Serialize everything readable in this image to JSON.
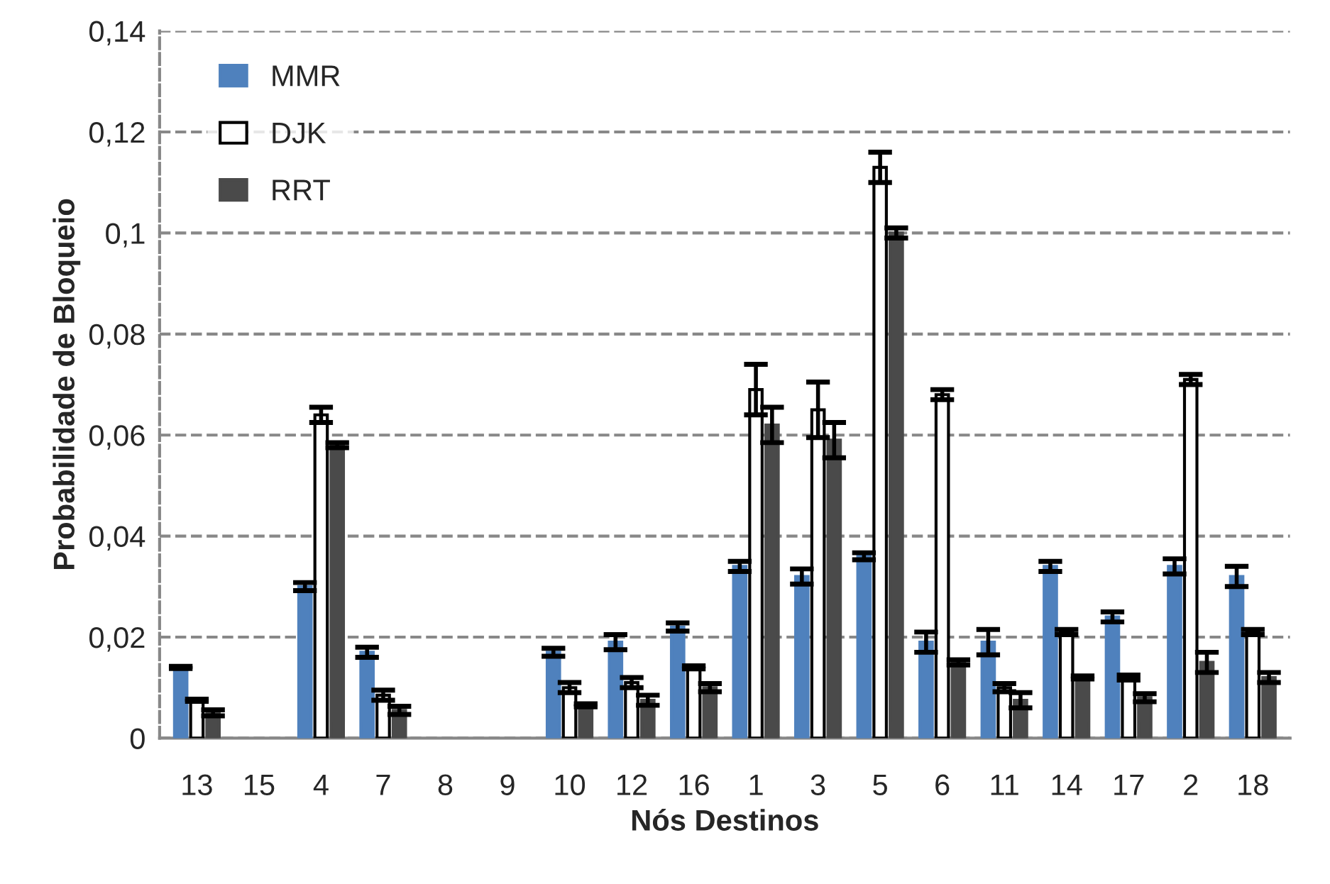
{
  "chart_data": {
    "type": "bar",
    "xlabel": "Nós Destinos",
    "ylabel": "Probabilidade de Bloqueio",
    "categories": [
      "13",
      "15",
      "4",
      "7",
      "8",
      "9",
      "10",
      "12",
      "16",
      "1",
      "3",
      "5",
      "6",
      "11",
      "14",
      "17",
      "2",
      "18"
    ],
    "series": [
      {
        "name": "MMR",
        "color": "#4f81bd",
        "values": [
          0.014,
          null,
          0.03,
          0.017,
          null,
          null,
          0.017,
          0.019,
          0.022,
          0.034,
          0.032,
          0.036,
          0.019,
          0.019,
          0.034,
          0.024,
          0.034,
          0.032
        ],
        "errors": [
          0.0002,
          null,
          0.0008,
          0.001,
          null,
          null,
          0.0008,
          0.0015,
          0.0008,
          0.001,
          0.0015,
          0.0007,
          0.002,
          0.0025,
          0.001,
          0.001,
          0.0015,
          0.002
        ]
      },
      {
        "name": "DJK",
        "color": "#ffffff",
        "values": [
          0.0075,
          null,
          0.064,
          0.0085,
          null,
          null,
          0.01,
          0.011,
          0.014,
          0.069,
          0.065,
          0.113,
          0.068,
          0.01,
          0.021,
          0.012,
          0.071,
          0.021
        ],
        "errors": [
          0.0002,
          null,
          0.0015,
          0.001,
          null,
          null,
          0.001,
          0.001,
          0.0003,
          0.005,
          0.0055,
          0.003,
          0.001,
          0.0008,
          0.0005,
          0.0005,
          0.001,
          0.0005
        ]
      },
      {
        "name": "RRT",
        "color": "#4a4a4a",
        "values": [
          0.005,
          null,
          0.058,
          0.0055,
          null,
          null,
          0.0065,
          0.0075,
          0.01,
          0.062,
          0.059,
          0.1,
          0.015,
          0.0075,
          0.012,
          0.008,
          0.015,
          0.012
        ],
        "errors": [
          0.0006,
          null,
          0.0005,
          0.0008,
          null,
          null,
          0.0003,
          0.001,
          0.0008,
          0.0035,
          0.0035,
          0.001,
          0.0005,
          0.0015,
          0.0003,
          0.0008,
          0.002,
          0.001
        ]
      }
    ],
    "ylim": [
      0,
      0.14
    ],
    "yticks": [
      {
        "value": 0,
        "label": "0"
      },
      {
        "value": 0.02,
        "label": "0,02"
      },
      {
        "value": 0.04,
        "label": "0,04"
      },
      {
        "value": 0.06,
        "label": "0,06"
      },
      {
        "value": 0.08,
        "label": "0,08"
      },
      {
        "value": 0.1,
        "label": "0,1"
      },
      {
        "value": 0.12,
        "label": "0,12"
      },
      {
        "value": 0.14,
        "label": "0,14"
      }
    ],
    "grid": "y",
    "legend": "top left"
  }
}
